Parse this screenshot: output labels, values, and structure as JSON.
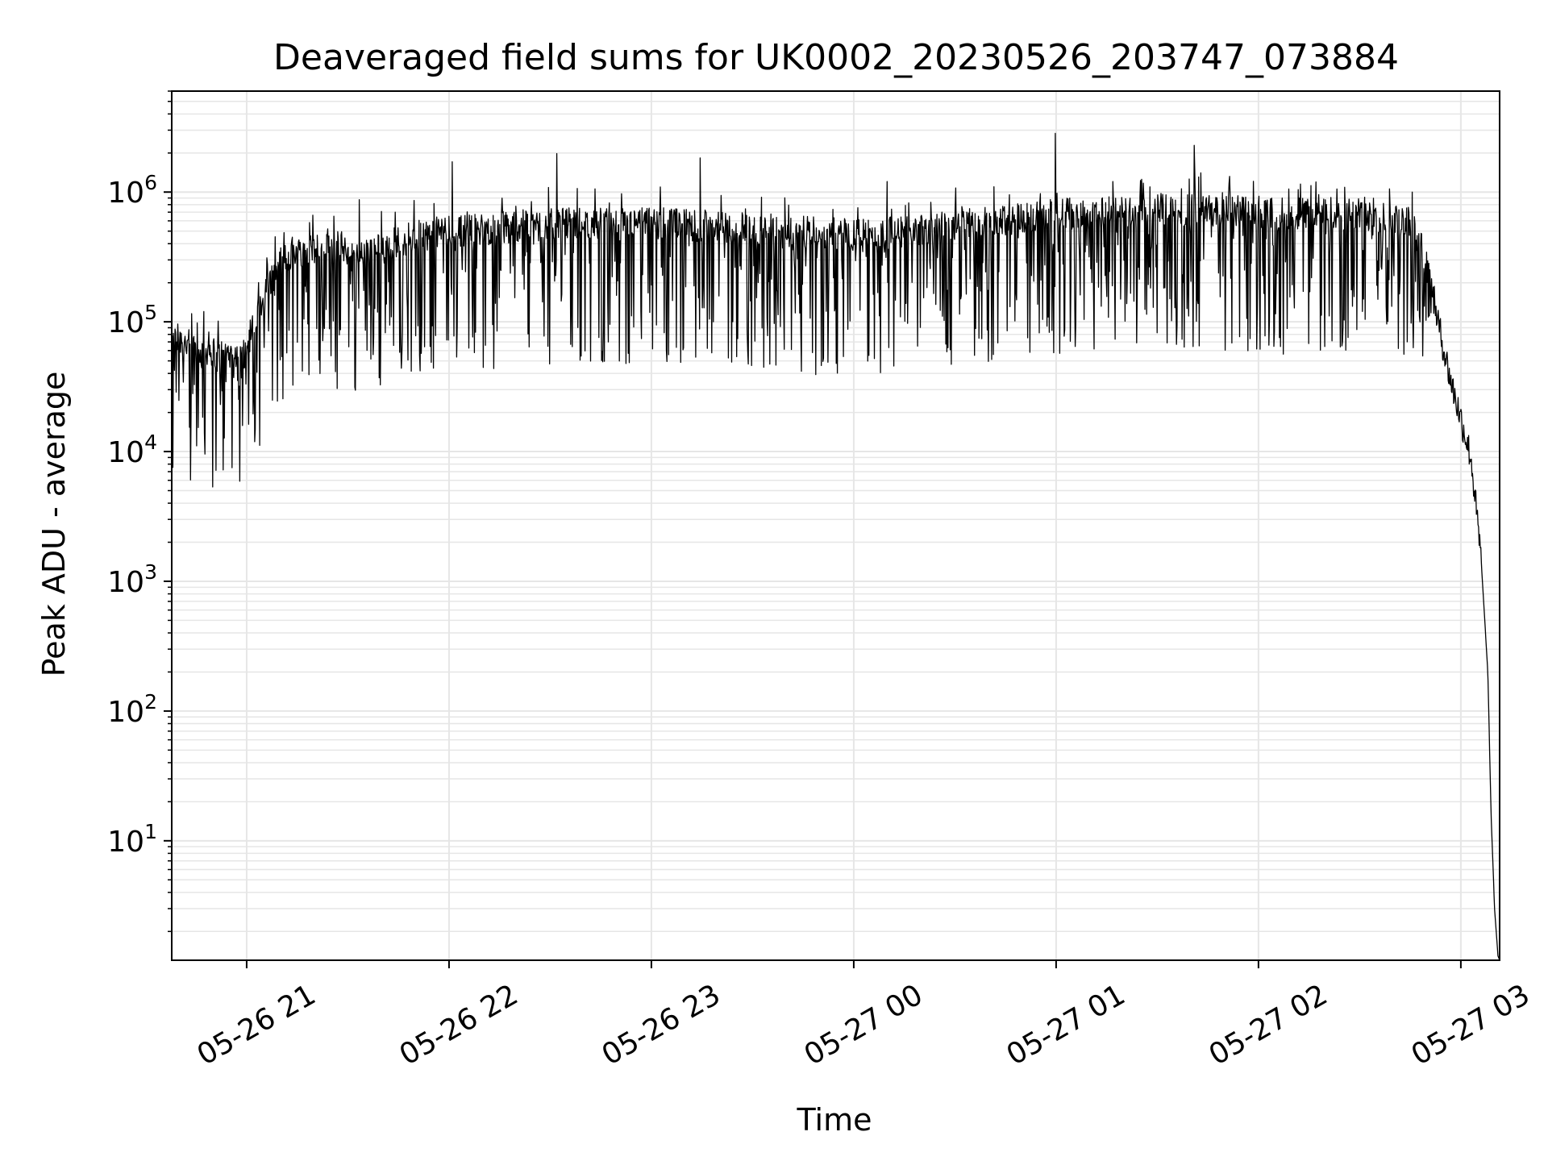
{
  "chart_data": {
    "type": "line",
    "title": "Deaveraged field sums for UK0002_20230526_203747_073884",
    "xlabel": "Time",
    "ylabel": "Peak ADU - average",
    "y_scale": "log",
    "ylim": [
      1.2,
      6000000
    ],
    "xlim": [
      "2023-05-26 20:37:47",
      "2023-05-27 03:11:30"
    ],
    "grid": true,
    "line_color": "#000000",
    "x_ticks": [
      {
        "value": "2023-05-26 21:00",
        "label": "05-26 21"
      },
      {
        "value": "2023-05-26 22:00",
        "label": "05-26 22"
      },
      {
        "value": "2023-05-26 23:00",
        "label": "05-26 23"
      },
      {
        "value": "2023-05-27 00:00",
        "label": "05-27 00"
      },
      {
        "value": "2023-05-27 01:00",
        "label": "05-27 01"
      },
      {
        "value": "2023-05-27 02:00",
        "label": "05-27 02"
      },
      {
        "value": "2023-05-27 03:00",
        "label": "05-27 03"
      }
    ],
    "y_ticks": [
      {
        "value": 10,
        "base": "10",
        "exp": "1"
      },
      {
        "value": 100,
        "base": "10",
        "exp": "2"
      },
      {
        "value": 1000,
        "base": "10",
        "exp": "3"
      },
      {
        "value": 10000,
        "base": "10",
        "exp": "4"
      },
      {
        "value": 100000,
        "base": "10",
        "exp": "5"
      },
      {
        "value": 1000000,
        "base": "10",
        "exp": "6"
      }
    ],
    "series": [
      {
        "x": [
          "2023-05-26 20:37:47",
          "2023-05-26 20:40",
          "2023-05-26 20:43",
          "2023-05-26 20:46",
          "2023-05-26 20:49",
          "2023-05-26 20:52",
          "2023-05-26 20:55",
          "2023-05-26 20:58",
          "2023-05-26 21:00",
          "2023-05-26 21:03",
          "2023-05-26 21:06",
          "2023-05-26 21:09",
          "2023-05-26 21:12",
          "2023-05-26 21:15",
          "2023-05-26 21:18",
          "2023-05-26 21:21",
          "2023-05-26 21:24",
          "2023-05-26 21:27",
          "2023-05-26 21:30",
          "2023-05-26 21:35",
          "2023-05-26 21:40",
          "2023-05-26 21:45",
          "2023-05-26 21:50",
          "2023-05-26 21:55",
          "2023-05-26 22:00",
          "2023-05-26 22:10",
          "2023-05-26 22:20",
          "2023-05-26 22:30",
          "2023-05-26 22:40",
          "2023-05-26 22:50",
          "2023-05-26 23:00",
          "2023-05-26 23:10",
          "2023-05-26 23:20",
          "2023-05-26 23:30",
          "2023-05-26 23:40",
          "2023-05-26 23:50",
          "2023-05-27 00:00",
          "2023-05-27 00:10",
          "2023-05-27 00:20",
          "2023-05-27 00:30",
          "2023-05-27 00:40",
          "2023-05-27 00:50",
          "2023-05-27 01:00",
          "2023-05-27 01:10",
          "2023-05-27 01:20",
          "2023-05-27 01:30",
          "2023-05-27 01:40",
          "2023-05-27 01:50",
          "2023-05-27 02:00",
          "2023-05-27 02:10",
          "2023-05-27 02:20",
          "2023-05-27 02:30",
          "2023-05-27 02:40",
          "2023-05-27 02:45",
          "2023-05-27 02:48",
          "2023-05-27 02:51",
          "2023-05-27 02:54",
          "2023-05-27 02:57",
          "2023-05-27 03:00",
          "2023-05-27 03:03",
          "2023-05-27 03:06",
          "2023-05-27 03:08",
          "2023-05-27 03:09",
          "2023-05-27 03:10",
          "2023-05-27 03:11",
          "2023-05-27 03:11:30"
        ],
        "y": [
          70000,
          75000,
          65000,
          60000,
          62000,
          55000,
          58000,
          50000,
          60000,
          110000,
          180000,
          260000,
          320000,
          350000,
          360000,
          380000,
          400000,
          380000,
          330000,
          320000,
          380000,
          420000,
          450000,
          480000,
          500000,
          520000,
          550000,
          560000,
          580000,
          560000,
          580000,
          560000,
          540000,
          520000,
          500000,
          480000,
          470000,
          480000,
          520000,
          560000,
          600000,
          640000,
          680000,
          700000,
          710000,
          720000,
          730000,
          720000,
          700000,
          690000,
          680000,
          670000,
          640000,
          560000,
          400000,
          200000,
          80000,
          35000,
          18000,
          9000,
          1500,
          200,
          15,
          3,
          1.3,
          1.2
        ]
      }
    ],
    "series_style": "noisy log-scale time series with dense downward spikes between ~2e4 and ~3e6"
  }
}
